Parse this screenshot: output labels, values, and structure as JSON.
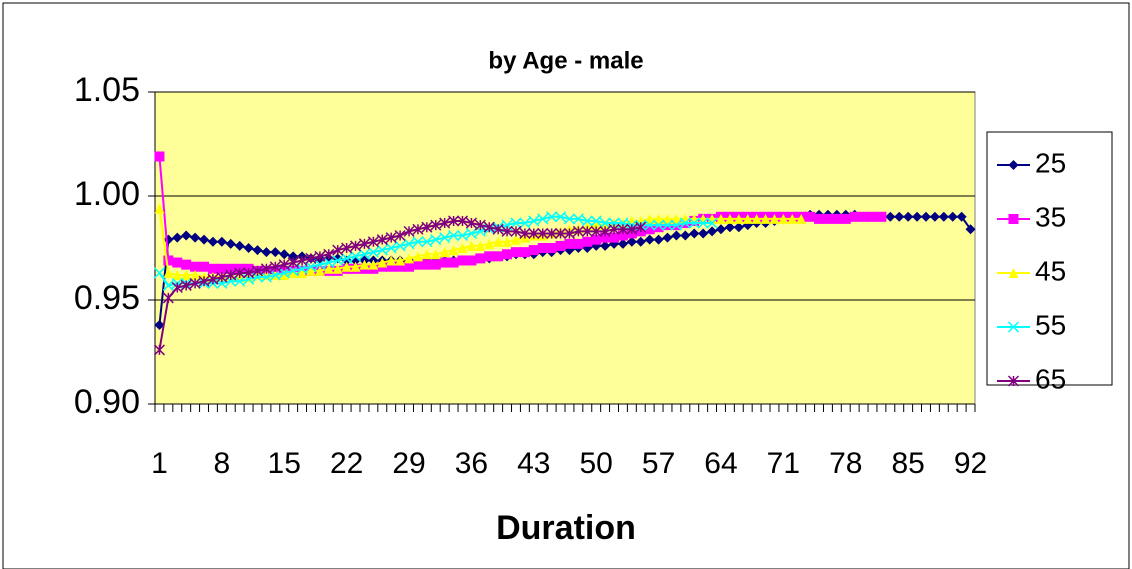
{
  "chart_data": {
    "type": "line",
    "title": "by Age - male",
    "x_label": "Duration",
    "categories": [
      1,
      null,
      null,
      null,
      null,
      null,
      null,
      8,
      null,
      null,
      null,
      null,
      null,
      null,
      15,
      null,
      null,
      null,
      null,
      null,
      null,
      22,
      null,
      null,
      null,
      null,
      null,
      null,
      29,
      null,
      null,
      null,
      null,
      null,
      null,
      36,
      null,
      null,
      null,
      null,
      null,
      null,
      43,
      null,
      null,
      null,
      null,
      null,
      null,
      50,
      null,
      null,
      null,
      null,
      null,
      null,
      57,
      null,
      null,
      null,
      null,
      null,
      null,
      64,
      null,
      null,
      null,
      null,
      null,
      null,
      71,
      null,
      null,
      null,
      null,
      null,
      null,
      78,
      null,
      null,
      null,
      null,
      null,
      null,
      85,
      null,
      null,
      null,
      null,
      null,
      null,
      92
    ],
    "ylim": [
      0.9,
      1.05
    ],
    "yticks": [
      {
        "value": 0.9,
        "label": "0.90"
      },
      {
        "value": 0.95,
        "label": "0.95"
      },
      {
        "value": 1.0,
        "label": "1.00"
      },
      {
        "value": 1.05,
        "label": "1.05"
      }
    ],
    "grid": true,
    "legend": "right",
    "background": "#ffff99",
    "series": [
      {
        "name": "25",
        "color": "#000080",
        "marker": "diamond",
        "values": [
          0.938,
          0.979,
          0.98,
          0.981,
          0.98,
          0.979,
          0.978,
          0.978,
          0.977,
          0.976,
          0.975,
          0.974,
          0.973,
          0.973,
          0.972,
          0.971,
          0.971,
          0.97,
          0.97,
          0.97,
          0.97,
          0.969,
          0.969,
          0.969,
          0.969,
          0.969,
          0.969,
          0.969,
          0.969,
          0.969,
          0.969,
          0.969,
          0.969,
          0.969,
          0.969,
          0.969,
          0.97,
          0.97,
          0.971,
          0.971,
          0.972,
          0.972,
          0.972,
          0.973,
          0.973,
          0.974,
          0.974,
          0.975,
          0.975,
          0.976,
          0.976,
          0.977,
          0.977,
          0.978,
          0.978,
          0.979,
          0.979,
          0.98,
          0.981,
          0.981,
          0.982,
          0.982,
          0.983,
          0.984,
          0.985,
          0.985,
          0.986,
          0.987,
          0.987,
          0.988,
          0.989,
          0.989,
          0.99,
          0.991,
          0.991,
          0.991,
          0.991,
          0.991,
          0.991,
          0.99,
          0.99,
          0.99,
          0.99,
          0.99,
          0.99,
          0.99,
          0.99,
          0.99,
          0.99,
          0.99,
          0.99,
          0.984
        ]
      },
      {
        "name": "35",
        "color": "#ff00ff",
        "marker": "square",
        "values": [
          1.019,
          0.969,
          0.968,
          0.967,
          0.966,
          0.966,
          0.965,
          0.965,
          0.965,
          0.965,
          0.965,
          0.964,
          0.964,
          0.964,
          0.964,
          0.964,
          0.964,
          0.964,
          0.964,
          0.964,
          0.964,
          0.965,
          0.965,
          0.965,
          0.965,
          0.966,
          0.966,
          0.966,
          0.966,
          0.967,
          0.967,
          0.967,
          0.968,
          0.968,
          0.969,
          0.969,
          0.97,
          0.971,
          0.971,
          0.972,
          0.973,
          0.973,
          0.974,
          0.975,
          0.975,
          0.976,
          0.977,
          0.977,
          0.978,
          0.979,
          0.98,
          0.98,
          0.981,
          0.982,
          0.983,
          0.984,
          0.985,
          0.986,
          0.986,
          0.987,
          0.988,
          0.989,
          0.989,
          0.99,
          0.99,
          0.99,
          0.99,
          0.99,
          0.99,
          0.99,
          0.99,
          0.99,
          0.99,
          0.99,
          0.989,
          0.989,
          0.989,
          0.989,
          0.99,
          0.99,
          0.99,
          0.99,
          null,
          null,
          null,
          null,
          null,
          null,
          null,
          null,
          null,
          null
        ]
      },
      {
        "name": "45",
        "color": "#ffff00",
        "marker": "triangle",
        "values": [
          0.994,
          0.963,
          0.962,
          0.962,
          0.962,
          0.961,
          0.961,
          0.961,
          0.961,
          0.961,
          0.961,
          0.962,
          0.962,
          0.962,
          0.962,
          0.963,
          0.963,
          0.964,
          0.964,
          0.965,
          0.965,
          0.966,
          0.966,
          0.967,
          0.967,
          0.968,
          0.969,
          0.969,
          0.97,
          0.971,
          0.972,
          0.972,
          0.973,
          0.974,
          0.975,
          0.976,
          0.976,
          0.977,
          0.978,
          0.978,
          0.979,
          0.98,
          0.981,
          0.981,
          0.982,
          0.983,
          0.984,
          0.984,
          0.985,
          0.986,
          0.986,
          0.987,
          0.987,
          0.988,
          0.988,
          0.989,
          0.989,
          0.989,
          0.989,
          0.989,
          0.989,
          0.989,
          0.989,
          0.989,
          0.989,
          0.989,
          0.989,
          0.989,
          0.989,
          0.989,
          0.989,
          0.989,
          0.989,
          null,
          null,
          null,
          null,
          null,
          null,
          null,
          null,
          null,
          null,
          null,
          null,
          null,
          null,
          null,
          null,
          null,
          null,
          null
        ]
      },
      {
        "name": "55",
        "color": "#00ffff",
        "marker": "x",
        "values": [
          0.963,
          0.957,
          0.958,
          0.958,
          0.958,
          0.958,
          0.958,
          0.958,
          0.959,
          0.959,
          0.96,
          0.961,
          0.961,
          0.962,
          0.963,
          0.964,
          0.965,
          0.966,
          0.967,
          0.968,
          0.969,
          0.97,
          0.971,
          0.972,
          0.973,
          0.974,
          0.975,
          0.976,
          0.977,
          0.978,
          0.978,
          0.979,
          0.98,
          0.981,
          0.981,
          0.982,
          0.983,
          0.984,
          0.985,
          0.986,
          0.987,
          0.987,
          0.988,
          0.989,
          0.99,
          0.99,
          0.989,
          0.989,
          0.988,
          0.988,
          0.987,
          0.987,
          0.987,
          0.986,
          0.986,
          0.986,
          0.986,
          0.986,
          0.986,
          0.987,
          0.987,
          0.987,
          0.987,
          null,
          null,
          null,
          null,
          null,
          null,
          null,
          null,
          null,
          null,
          null,
          null,
          null,
          null,
          null,
          null,
          null,
          null,
          null,
          null,
          null,
          null,
          null,
          null,
          null,
          null,
          null,
          null,
          null
        ]
      },
      {
        "name": "65",
        "color": "#800080",
        "marker": "star",
        "values": [
          0.926,
          0.951,
          0.956,
          0.957,
          0.958,
          0.959,
          0.96,
          0.961,
          0.962,
          0.963,
          0.963,
          0.964,
          0.965,
          0.966,
          0.967,
          0.968,
          0.969,
          0.97,
          0.971,
          0.972,
          0.974,
          0.975,
          0.976,
          0.977,
          0.978,
          0.979,
          0.98,
          0.981,
          0.983,
          0.984,
          0.985,
          0.986,
          0.987,
          0.988,
          0.988,
          0.987,
          0.986,
          0.985,
          0.984,
          0.983,
          0.983,
          0.982,
          0.982,
          0.982,
          0.982,
          0.982,
          0.982,
          0.983,
          0.983,
          0.983,
          0.983,
          0.984,
          0.984,
          0.984,
          0.985,
          null,
          null,
          null,
          null,
          null,
          null,
          null,
          null,
          null,
          null,
          null,
          null,
          null,
          null,
          null,
          null,
          null,
          null,
          null,
          null,
          null,
          null,
          null,
          null,
          null,
          null,
          null,
          null,
          null,
          null,
          null,
          null,
          null,
          null,
          null,
          null,
          null
        ]
      }
    ]
  }
}
